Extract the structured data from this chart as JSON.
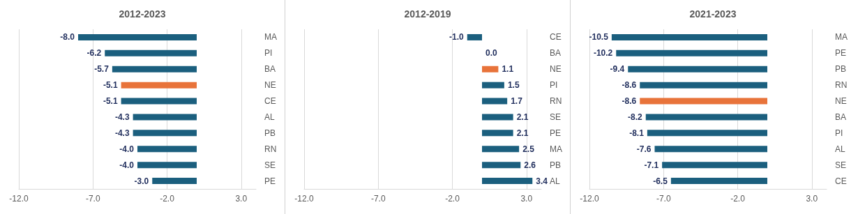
{
  "chart_data": [
    {
      "type": "bar",
      "title": "2012-2023",
      "orientation": "horizontal",
      "categories": [
        "MA",
        "PI",
        "BA",
        "NE",
        "CE",
        "AL",
        "PB",
        "RN",
        "SE",
        "PE"
      ],
      "values": [
        -8.0,
        -6.2,
        -5.7,
        -5.1,
        -5.1,
        -4.3,
        -4.3,
        -4.0,
        -4.0,
        -3.0
      ],
      "value_labels": [
        "-8.0",
        "-6.2",
        "-5.7",
        "-5.1",
        "-5.1",
        "-4.3",
        "-4.3",
        "-4.0",
        "-4.0",
        "-3.0"
      ],
      "colors": [
        "#1b5f7e",
        "#1b5f7e",
        "#1b5f7e",
        "#e8733a",
        "#1b5f7e",
        "#1b5f7e",
        "#1b5f7e",
        "#1b5f7e",
        "#1b5f7e",
        "#1b5f7e"
      ],
      "xlim": [
        -12,
        4
      ],
      "xticks": [
        {
          "value": -12,
          "label": "-12.0"
        },
        {
          "value": -7,
          "label": "-7.0"
        },
        {
          "value": -2,
          "label": "-2.0"
        },
        {
          "value": 3,
          "label": "3.0"
        }
      ],
      "grid": "x"
    },
    {
      "type": "bar",
      "title": "2012-2019",
      "orientation": "horizontal",
      "categories": [
        "CE",
        "BA",
        "NE",
        "PI",
        "RN",
        "SE",
        "PE",
        "MA",
        "PB",
        "AL"
      ],
      "values": [
        -1.0,
        0.0,
        1.1,
        1.5,
        1.7,
        2.1,
        2.1,
        2.5,
        2.6,
        3.4
      ],
      "value_labels": [
        "-1.0",
        "0.0",
        "1.1",
        "1.5",
        "1.7",
        "2.1",
        "2.1",
        "2.5",
        "2.6",
        "3.4"
      ],
      "colors": [
        "#1b5f7e",
        "#1b5f7e",
        "#e8733a",
        "#1b5f7e",
        "#1b5f7e",
        "#1b5f7e",
        "#1b5f7e",
        "#1b5f7e",
        "#1b5f7e",
        "#1b5f7e"
      ],
      "xlim": [
        -12,
        4
      ],
      "xticks": [
        {
          "value": -12,
          "label": "-12.0"
        },
        {
          "value": -7,
          "label": "-7.0"
        },
        {
          "value": -2,
          "label": "-2.0"
        },
        {
          "value": 3,
          "label": "3.0"
        }
      ],
      "grid": "x"
    },
    {
      "type": "bar",
      "title": "2021-2023",
      "orientation": "horizontal",
      "categories": [
        "MA",
        "PE",
        "PB",
        "RN",
        "NE",
        "BA",
        "PI",
        "AL",
        "SE",
        "CE"
      ],
      "values": [
        -10.5,
        -10.2,
        -9.4,
        -8.6,
        -8.6,
        -8.2,
        -8.1,
        -7.6,
        -7.1,
        -6.5
      ],
      "value_labels": [
        "-10.5",
        "-10.2",
        "-9.4",
        "-8.6",
        "-8.6",
        "-8.2",
        "-8.1",
        "-7.6",
        "-7.1",
        "-6.5"
      ],
      "colors": [
        "#1b5f7e",
        "#1b5f7e",
        "#1b5f7e",
        "#1b5f7e",
        "#e8733a",
        "#1b5f7e",
        "#1b5f7e",
        "#1b5f7e",
        "#1b5f7e",
        "#1b5f7e"
      ],
      "xlim": [
        -12,
        4
      ],
      "xticks": [
        {
          "value": -12,
          "label": "-12.0"
        },
        {
          "value": -7,
          "label": "-7.0"
        },
        {
          "value": -2,
          "label": "-2.0"
        },
        {
          "value": 3,
          "label": "3.0"
        }
      ],
      "grid": "x"
    }
  ]
}
